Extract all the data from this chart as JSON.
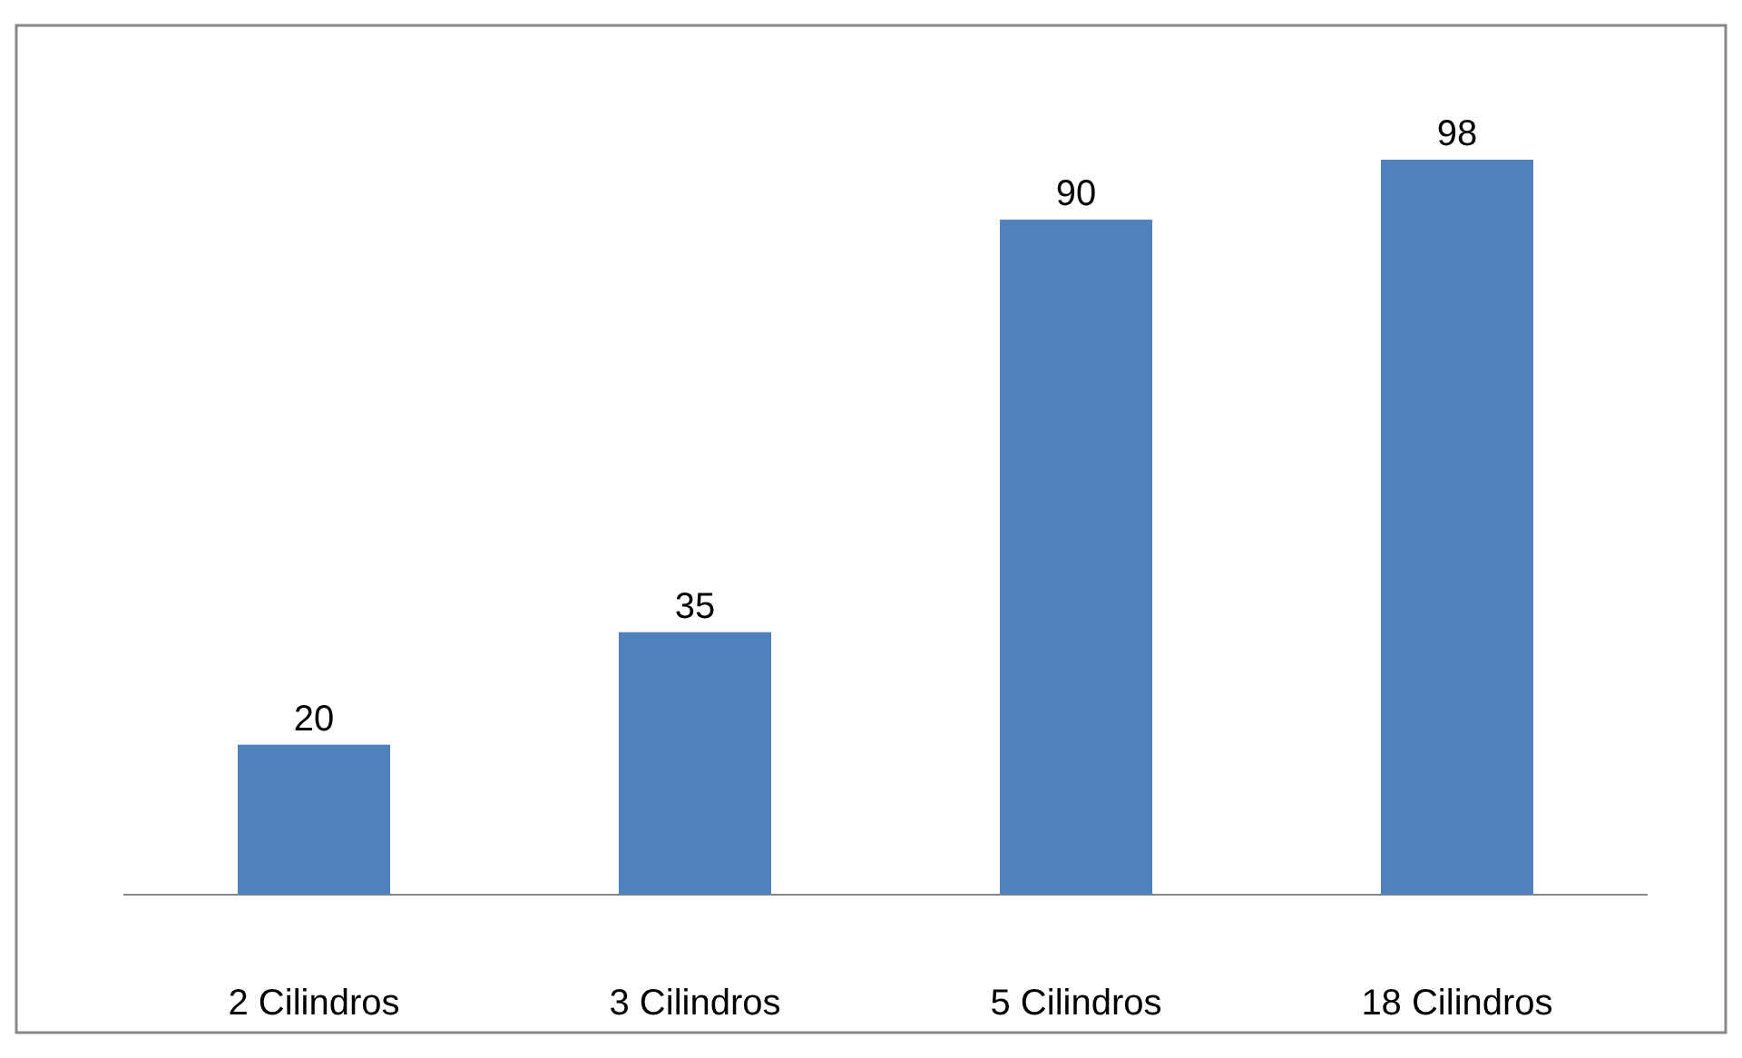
{
  "chart_data": {
    "type": "bar",
    "categories": [
      "2 Cilindros",
      "3 Cilindros",
      "5 Cilindros",
      "18 Cilindros"
    ],
    "values": [
      20,
      35,
      90,
      98
    ],
    "color": "#4f81bd",
    "data_labels": true,
    "tick_labels": "x"
  }
}
